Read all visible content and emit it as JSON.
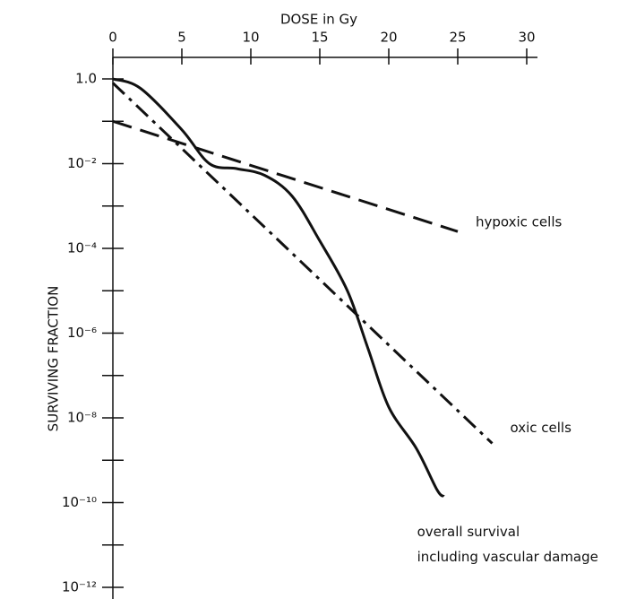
{
  "chart_data": {
    "type": "line",
    "xlabel": "DOSE in Gy",
    "ylabel": "SURVIVING FRACTION",
    "xlim": [
      0,
      30
    ],
    "xticks": [
      0,
      5,
      10,
      15,
      20,
      25,
      30
    ],
    "ylim": [
      1e-12,
      1
    ],
    "yscale": "log",
    "yticks": [
      {
        "value": 1,
        "label": "1.0"
      },
      {
        "value": 0.01,
        "label": "10⁻²"
      },
      {
        "value": 0.0001,
        "label": "10⁻⁴"
      },
      {
        "value": 1e-06,
        "label": "10⁻⁶"
      },
      {
        "value": 1e-08,
        "label": "10⁻⁸"
      },
      {
        "value": 1e-10,
        "label": "10⁻¹⁰"
      },
      {
        "value": 1e-12,
        "label": "10⁻¹²"
      }
    ],
    "yticks_minor": [
      0.1,
      0.001,
      1e-05,
      1e-07,
      1e-09,
      1e-11
    ],
    "series": [
      {
        "name": [
          "hypoxic cells"
        ],
        "color": "#111111",
        "dash": "dashed",
        "x": [
          0,
          25
        ],
        "values": [
          0.1,
          0.00025
        ]
      },
      {
        "name": [
          "oxic cells"
        ],
        "color": "#111111",
        "dash": "dashdot",
        "x": [
          0,
          27.5
        ],
        "values": [
          0.8,
          2.5e-09
        ]
      },
      {
        "name": [
          "overall survival",
          "including vascular damage"
        ],
        "color": "#111111",
        "dash": "solid",
        "x": [
          0,
          2,
          5,
          7,
          9,
          11,
          13,
          15,
          17,
          18.5,
          20,
          22,
          23.5,
          24
        ],
        "values": [
          1,
          0.6,
          0.063,
          0.01,
          0.0076,
          0.0053,
          0.0017,
          0.00015,
          1e-05,
          4.3e-07,
          1.8e-08,
          1.9e-09,
          2e-10,
          1.4e-10
        ]
      }
    ]
  }
}
